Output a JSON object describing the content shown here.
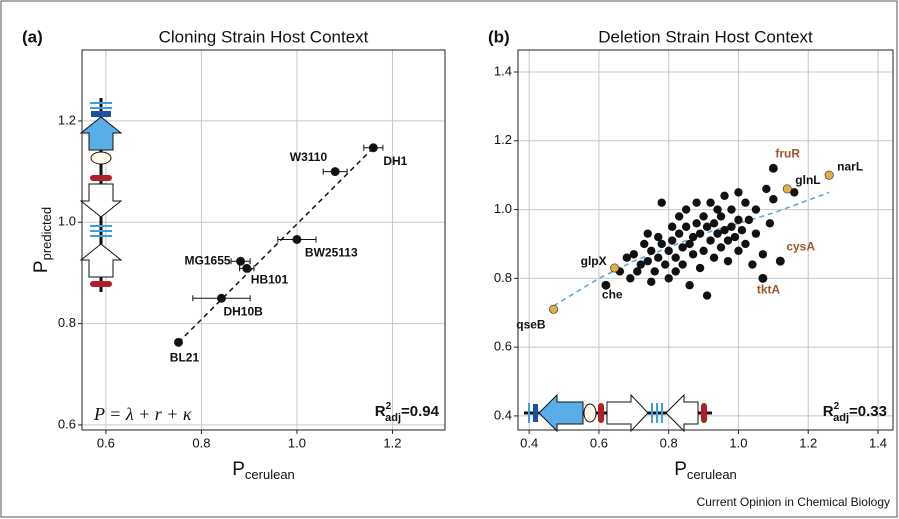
{
  "caption": "Current Opinion in Chemical Biology",
  "chart_data": [
    {
      "type": "scatter",
      "panel": "(a)",
      "title": "Cloning Strain Host Context",
      "xlabel": {
        "main": "P",
        "sub": "cerulean"
      },
      "ylabel": {
        "main": "P",
        "sub": "predicted"
      },
      "xlim": [
        0.55,
        1.31
      ],
      "ylim": [
        0.59,
        1.34
      ],
      "xticks": [
        0.6,
        0.8,
        {
          "value": 1,
          "label": "1.0"
        },
        1.2
      ],
      "yticks": [
        0.6,
        0.8,
        {
          "value": 1,
          "label": "1.0"
        },
        1.2
      ],
      "grid": true,
      "color": "#111111",
      "labeled": [
        {
          "label": "DH1",
          "x": 1.16,
          "y": 1.147,
          "xerr": 0.02
        },
        {
          "label": "W3110",
          "x": 1.08,
          "y": 1.1,
          "xerr": 0.025
        },
        {
          "label": "BW25113",
          "x": 1.0,
          "y": 0.966,
          "xerr": 0.04
        },
        {
          "label": "MG1655",
          "x": 0.882,
          "y": 0.923,
          "xerr": 0.02
        },
        {
          "label": "HB101",
          "x": 0.895,
          "y": 0.909,
          "xerr": 0.015
        },
        {
          "label": "DH10B",
          "x": 0.842,
          "y": 0.85,
          "xerr": 0.06
        },
        {
          "label": "BL21",
          "x": 0.752,
          "y": 0.763,
          "xerr": 0.005
        }
      ],
      "fit": {
        "x": [
          0.752,
          1.16
        ],
        "y": [
          0.763,
          1.147
        ],
        "color": "#111111"
      },
      "equation": "P = λ + r + κ",
      "r2": {
        "main": "R",
        "sup": "2",
        "sub": "adj",
        "value": "=0.94"
      }
    },
    {
      "type": "scatter",
      "panel": "(b)",
      "title": "Deletion Strain Host Context",
      "xlabel": {
        "main": "P",
        "sub": "cerulean"
      },
      "xlim": [
        0.368,
        1.443
      ],
      "ylim": [
        0.359,
        1.464
      ],
      "xticks": [
        0.4,
        0.6,
        0.8,
        {
          "value": 1,
          "label": "1.0"
        },
        1.2,
        1.4
      ],
      "yticks": [
        0.4,
        0.6,
        0.8,
        {
          "value": 1,
          "label": "1.0"
        },
        1.2,
        1.4
      ],
      "grid": true,
      "color": "#111111",
      "points": {
        "x": [
          0.66,
          0.68,
          0.69,
          0.7,
          0.71,
          0.72,
          0.73,
          0.74,
          0.74,
          0.75,
          0.75,
          0.76,
          0.77,
          0.77,
          0.78,
          0.78,
          0.79,
          0.8,
          0.8,
          0.81,
          0.81,
          0.82,
          0.82,
          0.83,
          0.83,
          0.84,
          0.84,
          0.85,
          0.85,
          0.86,
          0.86,
          0.87,
          0.87,
          0.88,
          0.88,
          0.89,
          0.89,
          0.9,
          0.9,
          0.91,
          0.91,
          0.92,
          0.92,
          0.93,
          0.93,
          0.94,
          0.94,
          0.95,
          0.95,
          0.96,
          0.96,
          0.97,
          0.97,
          0.98,
          0.98,
          0.99,
          1.0,
          1.0,
          1.0,
          1.01,
          1.02,
          1.02,
          1.03,
          1.04,
          1.05,
          1.05,
          1.07,
          1.08,
          1.09,
          1.1,
          1.16
        ],
        "y": [
          0.82,
          0.86,
          0.8,
          0.87,
          0.82,
          0.84,
          0.9,
          0.85,
          0.93,
          0.88,
          0.79,
          0.82,
          0.92,
          0.86,
          1.02,
          0.9,
          0.84,
          0.88,
          0.8,
          0.95,
          0.91,
          0.86,
          0.82,
          0.98,
          0.93,
          0.89,
          0.84,
          1.0,
          0.95,
          0.9,
          0.78,
          0.92,
          0.87,
          1.02,
          0.96,
          0.83,
          0.93,
          0.98,
          0.88,
          0.95,
          0.75,
          1.02,
          0.91,
          0.96,
          0.86,
          1.0,
          0.93,
          0.98,
          0.89,
          1.04,
          0.94,
          0.91,
          0.85,
          1.0,
          0.95,
          0.92,
          1.05,
          0.97,
          0.88,
          0.94,
          1.02,
          0.9,
          0.97,
          0.84,
          0.93,
          1.0,
          0.87,
          1.06,
          0.96,
          1.03,
          1.05
        ]
      },
      "labeled": [
        {
          "label": "qseB",
          "x": 0.47,
          "y": 0.71,
          "color": "#e0b040",
          "label_color": "#111111"
        },
        {
          "label": "glpX",
          "x": 0.645,
          "y": 0.83,
          "color": "#e0b040",
          "label_color": "#111111"
        },
        {
          "label": "che",
          "x": 0.62,
          "y": 0.78,
          "color": "#111111",
          "label_color": "#111111"
        },
        {
          "label": "fruR",
          "x": 1.1,
          "y": 1.12,
          "color": "#111111",
          "label_color": "#a0552d"
        },
        {
          "label": "glnL",
          "x": 1.14,
          "y": 1.06,
          "color": "#e0b040",
          "label_color": "#111111"
        },
        {
          "label": "narL",
          "x": 1.26,
          "y": 1.1,
          "color": "#e0b040",
          "label_color": "#111111"
        },
        {
          "label": "cysA",
          "x": 1.12,
          "y": 0.85,
          "color": "#111111",
          "label_color": "#a0552d"
        },
        {
          "label": "tktA",
          "x": 1.07,
          "y": 0.8,
          "color": "#111111",
          "label_color": "#a0552d"
        }
      ],
      "fit": {
        "x": [
          0.47,
          0.6,
          0.7,
          0.8,
          0.9,
          1.0,
          1.1,
          1.26
        ],
        "y": [
          0.72,
          0.8,
          0.85,
          0.89,
          0.93,
          0.96,
          0.99,
          1.05
        ],
        "color": "#5aa7d8"
      },
      "r2": {
        "main": "R",
        "sup": "2",
        "sub": "adj",
        "value": "=0.33"
      }
    }
  ]
}
